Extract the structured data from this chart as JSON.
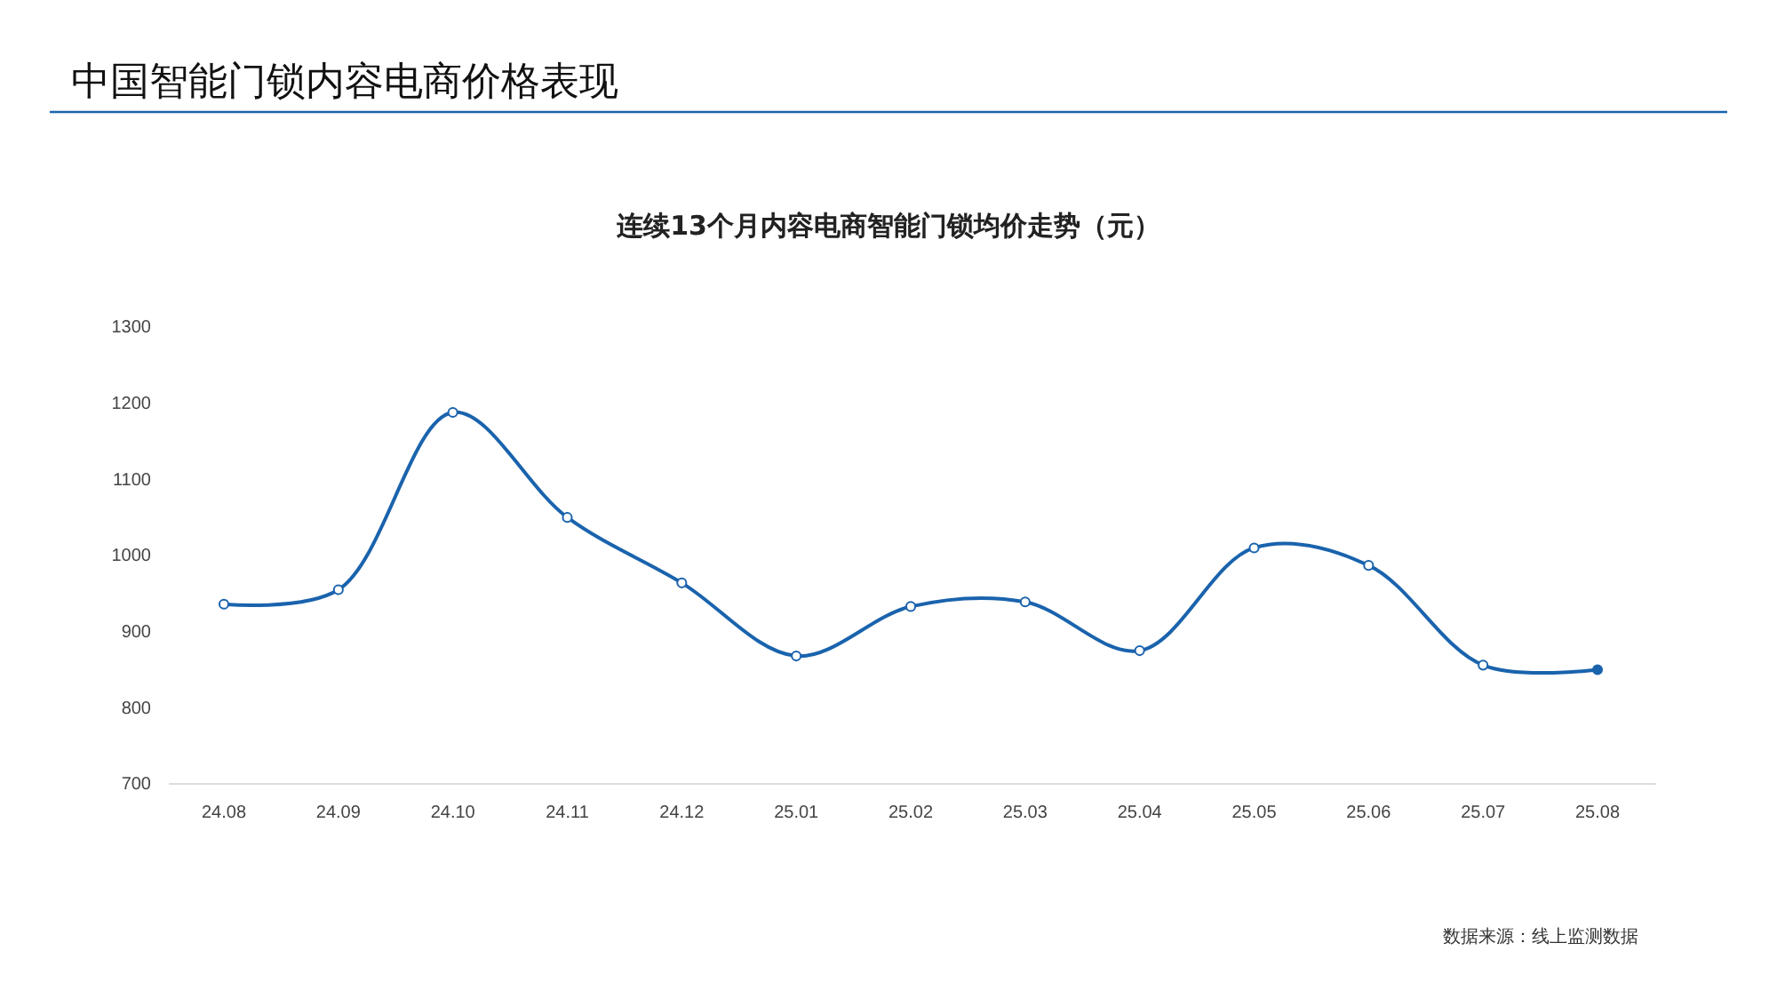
{
  "chart_data": {
    "type": "line",
    "title": "中国智能门锁内容电商价格表现",
    "subtitle": "连续13个月内容电商智能门锁均价走势（元）",
    "categories": [
      "24.08",
      "24.09",
      "24.10",
      "24.11",
      "24.12",
      "25.01",
      "25.02",
      "25.03",
      "25.04",
      "25.05",
      "25.06",
      "25.07",
      "25.08"
    ],
    "series": [
      {
        "color": "#1a63ad",
        "values": [
          936,
          955,
          1188,
          1050,
          964,
          868,
          933,
          939,
          875,
          1010,
          987,
          856,
          850
        ]
      }
    ],
    "ylim": [
      700,
      1300
    ],
    "yticks": [
      700,
      800,
      900,
      1000,
      1100,
      1200,
      1300
    ],
    "grid": false,
    "marker": "circle",
    "line_style": "solid",
    "annotations": [
      "数据来源：线上监测数据"
    ]
  }
}
